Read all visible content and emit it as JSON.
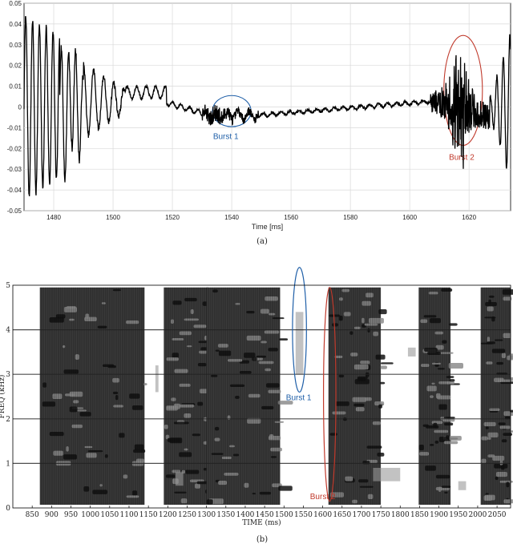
{
  "chart_data": [
    {
      "type": "line",
      "caption": "(a)",
      "xlabel": "Time [ms]",
      "ylabel": "",
      "xlim": [
        1470,
        1634
      ],
      "ylim": [
        -0.05,
        0.05
      ],
      "xticks": [
        1480,
        1500,
        1520,
        1540,
        1560,
        1580,
        1600,
        1620
      ],
      "yticks": [
        0.05,
        0.04,
        0.03,
        0.02,
        0.01,
        0,
        -0.01,
        -0.02,
        -0.03,
        -0.04,
        -0.05
      ],
      "grid": true,
      "series_color": "#000000",
      "annotations": [
        {
          "label": "Burst 1",
          "color": "#1f5fa8",
          "cx": 1540,
          "cy": -0.002,
          "rx": 6.5,
          "ry": 0.0075,
          "label_x": 1538,
          "label_y": -0.0155
        },
        {
          "label": "Burst 2",
          "color": "#c0392b",
          "cx": 1618,
          "cy": 0.008,
          "rx": 6.5,
          "ry": 0.0265,
          "label_x": 1617.5,
          "label_y": -0.0255
        }
      ]
    },
    {
      "type": "heatmap",
      "caption": "(b)",
      "xlabel": "TIME (ms)",
      "ylabel": "FREQ (kHz)",
      "xlim": [
        800,
        2085
      ],
      "ylim": [
        0,
        5
      ],
      "xticks": [
        850,
        900,
        950,
        1000,
        1050,
        1100,
        1150,
        1200,
        1250,
        1300,
        1350,
        1400,
        1450,
        1500,
        1550,
        1600,
        1650,
        1700,
        1750,
        1800,
        1850,
        1900,
        1950,
        2000,
        2050
      ],
      "yticks": [
        0,
        1,
        2,
        3,
        4,
        5
      ],
      "colormap": "grayscale",
      "segments": [
        [
          870,
          1140
        ],
        [
          1190,
          1305
        ],
        [
          1300,
          1490
        ],
        [
          1615,
          1750
        ],
        [
          1848,
          1930
        ],
        [
          2008,
          2085
        ]
      ],
      "annotations": [
        {
          "label": "Burst 1",
          "color": "#1f5fa8",
          "cx": 1540,
          "cy": 4.0,
          "rx": 18,
          "ry": 1.4,
          "label_x": 1538,
          "label_y": 2.42
        },
        {
          "label": "Burst 2",
          "color": "#c0392b",
          "cx": 1618,
          "cy": 2.55,
          "rx": 16,
          "ry": 2.4,
          "label_x": 1600,
          "label_y": 0.2
        }
      ]
    }
  ]
}
